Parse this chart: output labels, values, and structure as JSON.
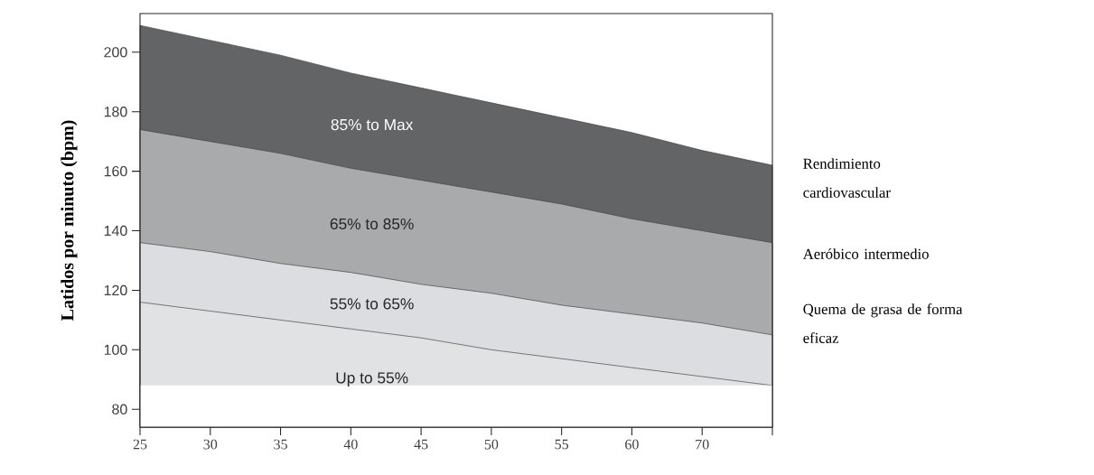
{
  "chart_data": {
    "type": "area",
    "ylabel": "Latidos por minuto (bpm)",
    "categories": [
      "25",
      "30",
      "35",
      "40",
      "45",
      "50",
      "55",
      "60",
      "70",
      null
    ],
    "series": [
      {
        "name": "85% to Max",
        "color": "#636466",
        "values": [
          209,
          204,
          199,
          193,
          188,
          183,
          178,
          173,
          167,
          162
        ]
      },
      {
        "name": "65% to 85%",
        "color": "#a9aaac",
        "values": [
          174,
          170,
          166,
          161,
          157,
          153,
          149,
          144,
          140,
          136
        ]
      },
      {
        "name": "55% to 65%",
        "color": "#dcdde0",
        "values": [
          136,
          133,
          129,
          126,
          122,
          119,
          115,
          112,
          109,
          105
        ]
      },
      {
        "name": "Up to 55%",
        "color": "#e1e2e4",
        "values": [
          116,
          113,
          110,
          107,
          104,
          100,
          97,
          94,
          91,
          88
        ]
      }
    ],
    "bands": [
      {
        "axis": "y",
        "from": 74,
        "to": 88,
        "color": "#ffffff"
      }
    ],
    "ylim": [
      74,
      213
    ],
    "yticks": [
      80,
      100,
      120,
      140,
      160,
      180,
      200
    ],
    "annotations": [
      "Rendimiento cardiovascular",
      "Aeróbico intermedio",
      "Quema de grasa de forma eficaz"
    ]
  }
}
